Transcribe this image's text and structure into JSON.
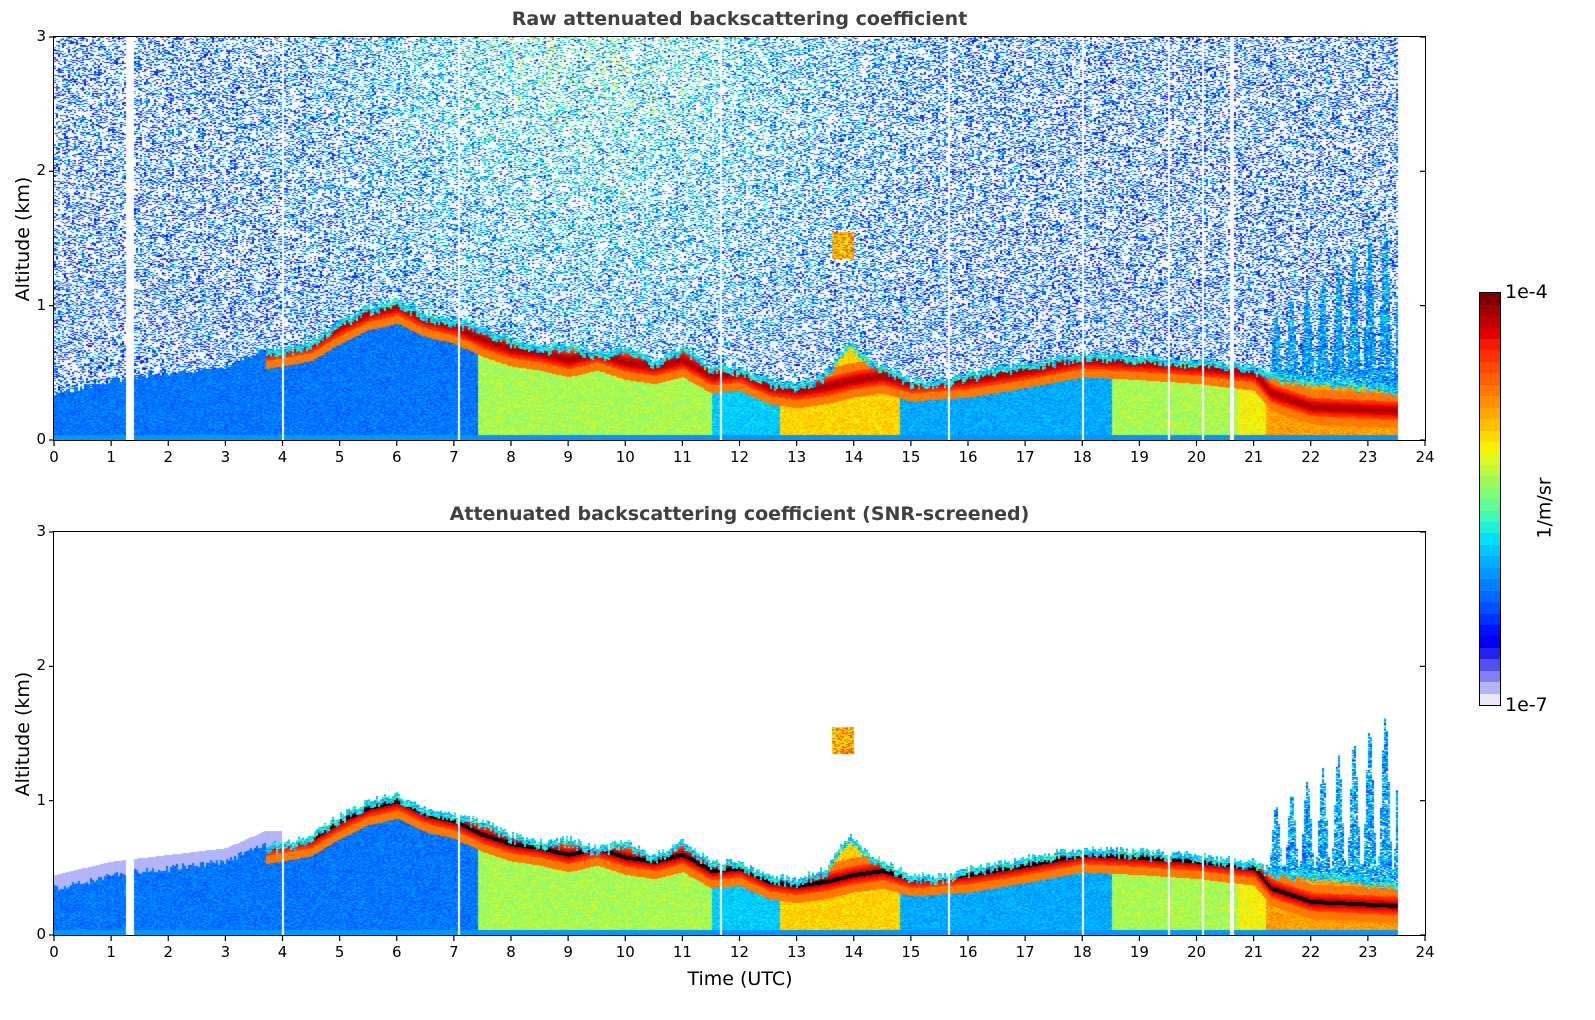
{
  "chart_data": [
    {
      "type": "heatmap",
      "title": "Raw attenuated backscattering coefficient",
      "xlabel": "",
      "ylabel": "Altitude (km)",
      "xlim": [
        0,
        24
      ],
      "ylim": [
        0,
        3
      ],
      "xticks": [
        "0",
        "1",
        "2",
        "3",
        "4",
        "5",
        "6",
        "7",
        "8",
        "9",
        "10",
        "11",
        "12",
        "13",
        "14",
        "15",
        "16",
        "17",
        "18",
        "19",
        "20",
        "21",
        "22",
        "23",
        "24"
      ],
      "yticks": [
        "0",
        "1",
        "2",
        "3"
      ],
      "data_end_time": 23.5,
      "screened": false,
      "layer_top_km": [
        [
          0,
          0.35
        ],
        [
          1,
          0.45
        ],
        [
          2,
          0.5
        ],
        [
          3,
          0.55
        ],
        [
          3.7,
          0.68
        ],
        [
          4,
          0.68
        ],
        [
          4.5,
          0.75
        ],
        [
          5,
          0.9
        ],
        [
          5.5,
          1.0
        ],
        [
          6,
          1.05
        ],
        [
          6.5,
          0.95
        ],
        [
          7,
          0.9
        ],
        [
          7.5,
          0.85
        ],
        [
          8,
          0.75
        ],
        [
          8.5,
          0.7
        ],
        [
          9,
          0.72
        ],
        [
          9.5,
          0.65
        ],
        [
          10,
          0.7
        ],
        [
          10.5,
          0.6
        ],
        [
          11,
          0.7
        ],
        [
          11.5,
          0.55
        ],
        [
          12,
          0.55
        ],
        [
          12.5,
          0.45
        ],
        [
          13,
          0.42
        ],
        [
          13.5,
          0.5
        ],
        [
          13.9,
          0.75
        ],
        [
          14.3,
          0.6
        ],
        [
          15,
          0.45
        ],
        [
          15.5,
          0.45
        ],
        [
          16,
          0.5
        ],
        [
          17,
          0.58
        ],
        [
          18,
          0.65
        ],
        [
          19,
          0.63
        ],
        [
          20,
          0.6
        ],
        [
          21,
          0.55
        ],
        [
          21.2,
          0.5
        ],
        [
          23.5,
          0.4
        ]
      ],
      "boundary_layer_band_km": [
        [
          3.7,
          0.66
        ],
        [
          4.5,
          0.72
        ],
        [
          5,
          0.85
        ],
        [
          5.5,
          0.95
        ],
        [
          6,
          1.0
        ],
        [
          6.5,
          0.9
        ],
        [
          7,
          0.85
        ],
        [
          7.5,
          0.75
        ],
        [
          8,
          0.68
        ],
        [
          8.5,
          0.65
        ],
        [
          9,
          0.6
        ],
        [
          9.5,
          0.65
        ],
        [
          10,
          0.58
        ],
        [
          10.5,
          0.55
        ],
        [
          11,
          0.6
        ],
        [
          11.5,
          0.48
        ],
        [
          12,
          0.5
        ],
        [
          12.5,
          0.4
        ],
        [
          13,
          0.37
        ],
        [
          13.5,
          0.4
        ],
        [
          14,
          0.45
        ],
        [
          14.5,
          0.48
        ],
        [
          15,
          0.42
        ],
        [
          16,
          0.45
        ],
        [
          17,
          0.52
        ],
        [
          18,
          0.6
        ],
        [
          19,
          0.58
        ],
        [
          20,
          0.55
        ],
        [
          21,
          0.5
        ],
        [
          21.3,
          0.35
        ],
        [
          22,
          0.25
        ],
        [
          23.5,
          0.22
        ]
      ],
      "gaps_utc": [
        1.28,
        1.35,
        4.0,
        7.08,
        11.65,
        15.65,
        18.0,
        19.5,
        20.1,
        20.6
      ]
    },
    {
      "type": "heatmap",
      "title": "Attenuated backscattering coefficient (SNR-screened)",
      "xlabel": "Time (UTC)",
      "ylabel": "Altitude (km)",
      "xlim": [
        0,
        24
      ],
      "ylim": [
        0,
        3
      ],
      "xticks": [
        "0",
        "1",
        "2",
        "3",
        "4",
        "5",
        "6",
        "7",
        "8",
        "9",
        "10",
        "11",
        "12",
        "13",
        "14",
        "15",
        "16",
        "17",
        "18",
        "19",
        "20",
        "21",
        "22",
        "23",
        "24"
      ],
      "yticks": [
        "0",
        "1",
        "2",
        "3"
      ],
      "data_end_time": 23.5,
      "screened": true
    }
  ],
  "colorbar": {
    "max_label": "1e-4",
    "min_label": "1e-7",
    "unit": "1/m/sr",
    "scale": "log",
    "range": [
      1e-07,
      0.0001
    ],
    "colors": [
      "#e8e8fa",
      "#b4b4f8",
      "#8080f4",
      "#5050f0",
      "#2020f0",
      "#0000f0",
      "#0010ff",
      "#0030ff",
      "#0050ff",
      "#0068ff",
      "#0080ff",
      "#0098ff",
      "#00b0ff",
      "#00c8ff",
      "#00e0f8",
      "#20f0d8",
      "#40f8b8",
      "#60fc98",
      "#80fc78",
      "#a0f858",
      "#c0f840",
      "#e0f820",
      "#f8f000",
      "#ffd800",
      "#ffc000",
      "#ffa800",
      "#ff9000",
      "#ff7800",
      "#ff6000",
      "#ff4800",
      "#ff3000",
      "#f81800",
      "#e00000",
      "#c00000",
      "#a00000",
      "#800000"
    ]
  }
}
